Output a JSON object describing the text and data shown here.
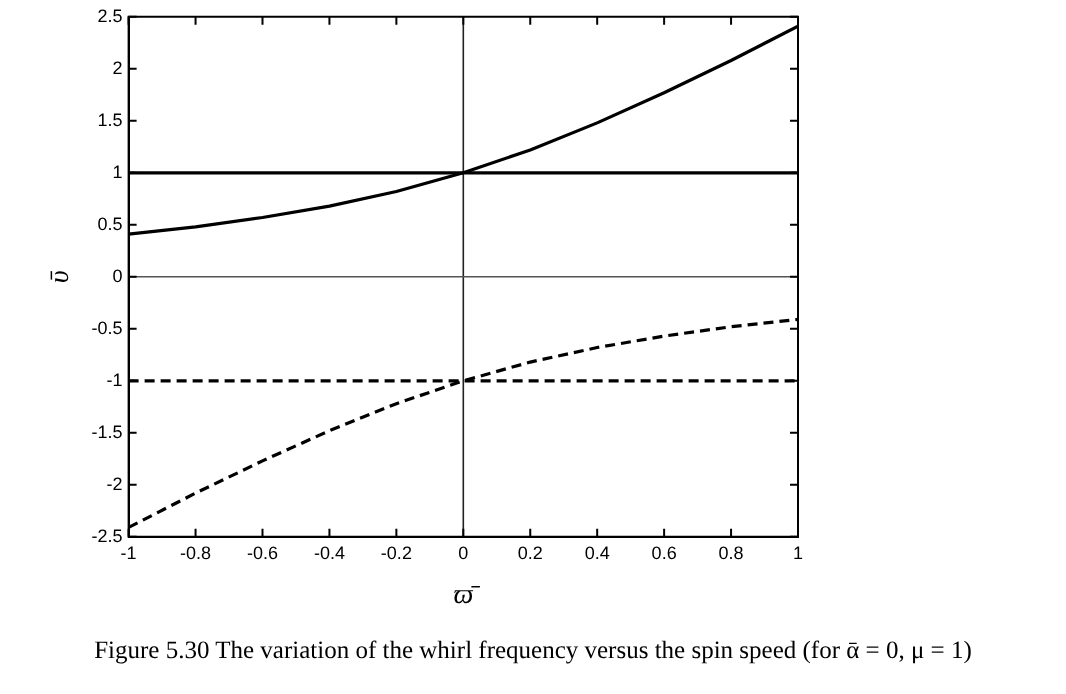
{
  "chart_data": {
    "type": "line",
    "xlabel": "ϖ̄",
    "ylabel": "ῡ",
    "annotations": [
      "Figure 5.30 The variation of the whirl frequency versus the spin speed (for ᾱ = 0, μ = 1)"
    ],
    "series": [
      {
        "color": "#000000",
        "line_style": "solid",
        "x": [
          -1,
          -0.8,
          -0.6,
          -0.4,
          -0.2,
          0,
          0.2,
          0.4,
          0.6,
          0.8,
          1
        ],
        "values": [
          0.41,
          0.48,
          0.57,
          0.68,
          0.82,
          1,
          1.22,
          1.48,
          1.77,
          2.08,
          2.41
        ]
      },
      {
        "color": "#000000",
        "line_style": "solid",
        "x": [
          -1,
          1
        ],
        "values": [
          1,
          1
        ]
      },
      {
        "color": "#000000",
        "line_style": "dashed",
        "x": [
          -1,
          -0.8,
          -0.6,
          -0.4,
          -0.2,
          0,
          0.2,
          0.4,
          0.6,
          0.8,
          1
        ],
        "values": [
          -2.41,
          -2.08,
          -1.77,
          -1.48,
          -1.22,
          -1,
          -0.82,
          -0.68,
          -0.57,
          -0.48,
          -0.41
        ]
      },
      {
        "color": "#000000",
        "line_style": "dashed",
        "x": [
          -1,
          1
        ],
        "values": [
          -1,
          -1
        ]
      }
    ],
    "ref_lines": [
      {
        "axis": "x",
        "value": 0
      },
      {
        "axis": "y",
        "value": 0
      }
    ],
    "xlim": [
      -1,
      1
    ],
    "xticks": [
      -1,
      -0.8,
      -0.6,
      -0.4,
      -0.2,
      0,
      0.2,
      0.4,
      0.6,
      0.8,
      1
    ],
    "ylim": [
      -2.5,
      2.5
    ],
    "yticks": [
      -2.5,
      -2,
      -1.5,
      -1,
      -0.5,
      0,
      0.5,
      1,
      1.5,
      2,
      2.5
    ],
    "grid": false,
    "legend": false,
    "marker": "none"
  }
}
